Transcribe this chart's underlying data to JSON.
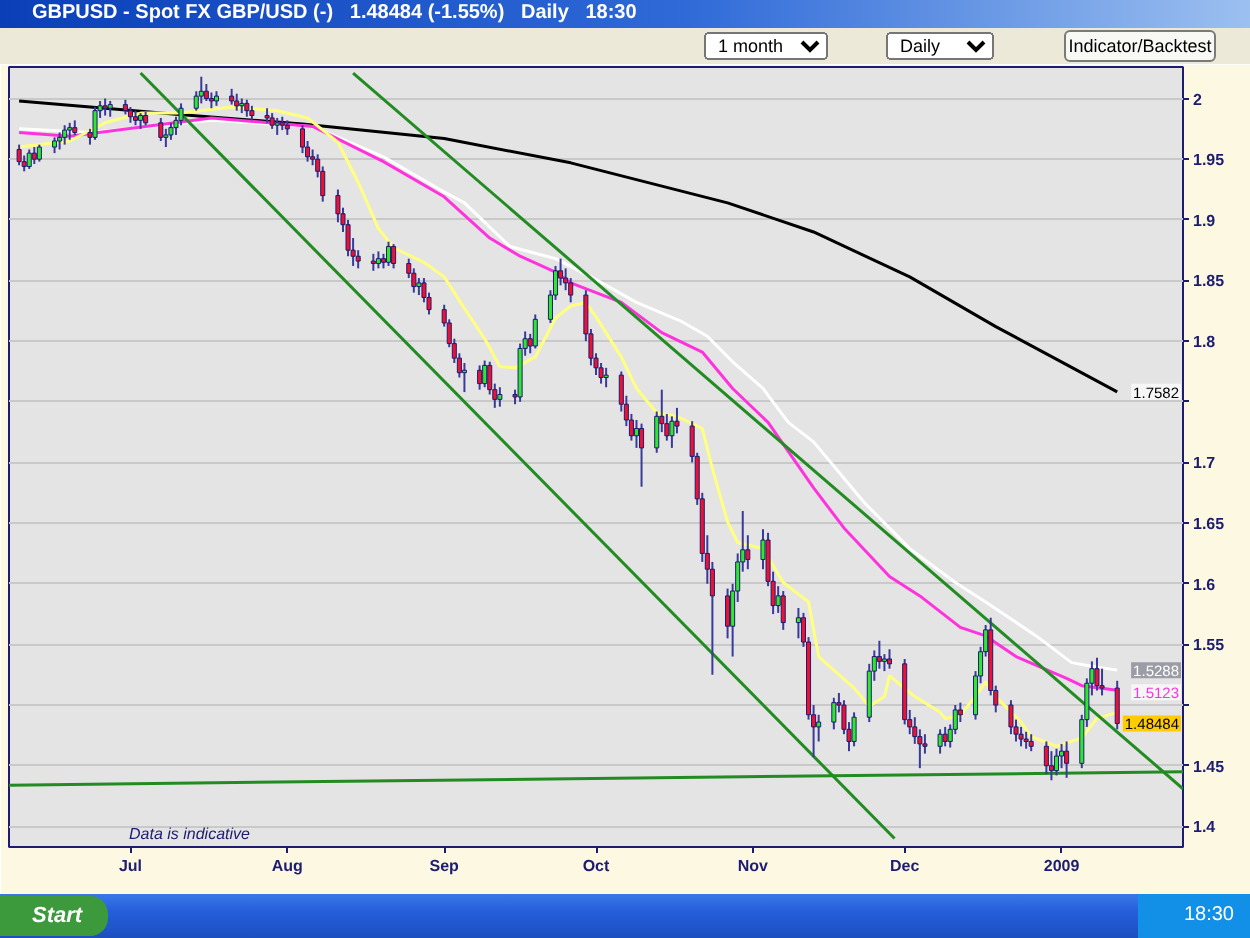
{
  "chart_data": {
    "type": "candlestick",
    "title": "GBPUSD - Spot FX GBP/USD (-)   1.48484 (-1.55%)   Daily   18:30",
    "annotations": [
      "Data is indicative",
      "1 month",
      "Daily",
      "Indicator/Backtest",
      "Start",
      "18:30"
    ],
    "xlim": [
      "2008-06-07",
      "2009-01-25"
    ],
    "ylim": [
      1.383,
      2.026
    ],
    "xticks": [
      {
        "value": "2008-07-01",
        "label": "Jul"
      },
      {
        "value": "2008-08-01",
        "label": "Aug"
      },
      {
        "value": "2008-09-01",
        "label": "Sep"
      },
      {
        "value": "2008-10-01",
        "label": "Oct"
      },
      {
        "value": "2008-11-01",
        "label": "Nov"
      },
      {
        "value": "2008-12-01",
        "label": "Dec"
      },
      {
        "value": "2009-01-01",
        "label": "2009"
      }
    ],
    "yticks": [
      2,
      1.95,
      1.9,
      1.85,
      1.8,
      {
        "value": 1.75,
        "label": null
      },
      1.7,
      1.65,
      1.6,
      1.55,
      {
        "value": 1.5,
        "label": null
      },
      1.45,
      1.4
    ],
    "grid": "y",
    "x": [
      "2008-06-09",
      "2008-06-10",
      "2008-06-11",
      "2008-06-12",
      "2008-06-13",
      "2008-06-16",
      "2008-06-17",
      "2008-06-18",
      "2008-06-19",
      "2008-06-20",
      "2008-06-23",
      "2008-06-24",
      "2008-06-25",
      "2008-06-26",
      "2008-06-27",
      "2008-06-30",
      "2008-07-01",
      "2008-07-02",
      "2008-07-03",
      "2008-07-04",
      "2008-07-07",
      "2008-07-08",
      "2008-07-09",
      "2008-07-10",
      "2008-07-11",
      "2008-07-14",
      "2008-07-15",
      "2008-07-16",
      "2008-07-17",
      "2008-07-18",
      "2008-07-21",
      "2008-07-22",
      "2008-07-23",
      "2008-07-24",
      "2008-07-25",
      "2008-07-28",
      "2008-07-29",
      "2008-07-30",
      "2008-07-31",
      "2008-08-01",
      "2008-08-04",
      "2008-08-05",
      "2008-08-06",
      "2008-08-07",
      "2008-08-08",
      "2008-08-11",
      "2008-08-12",
      "2008-08-13",
      "2008-08-14",
      "2008-08-15",
      "2008-08-18",
      "2008-08-19",
      "2008-08-20",
      "2008-08-21",
      "2008-08-22",
      "2008-08-25",
      "2008-08-26",
      "2008-08-27",
      "2008-08-28",
      "2008-08-29",
      "2008-09-01",
      "2008-09-02",
      "2008-09-03",
      "2008-09-04",
      "2008-09-05",
      "2008-09-08",
      "2008-09-09",
      "2008-09-10",
      "2008-09-11",
      "2008-09-12",
      "2008-09-15",
      "2008-09-16",
      "2008-09-17",
      "2008-09-18",
      "2008-09-19",
      "2008-09-22",
      "2008-09-23",
      "2008-09-24",
      "2008-09-25",
      "2008-09-26",
      "2008-09-29",
      "2008-09-30",
      "2008-10-01",
      "2008-10-02",
      "2008-10-03",
      "2008-10-06",
      "2008-10-07",
      "2008-10-08",
      "2008-10-09",
      "2008-10-10",
      "2008-10-13",
      "2008-10-14",
      "2008-10-15",
      "2008-10-16",
      "2008-10-17",
      "2008-10-20",
      "2008-10-21",
      "2008-10-22",
      "2008-10-23",
      "2008-10-24",
      "2008-10-27",
      "2008-10-28",
      "2008-10-29",
      "2008-10-30",
      "2008-10-31",
      "2008-11-03",
      "2008-11-04",
      "2008-11-05",
      "2008-11-06",
      "2008-11-07",
      "2008-11-10",
      "2008-11-11",
      "2008-11-12",
      "2008-11-13",
      "2008-11-14",
      "2008-11-17",
      "2008-11-18",
      "2008-11-19",
      "2008-11-20",
      "2008-11-21",
      "2008-11-24",
      "2008-11-25",
      "2008-11-26",
      "2008-11-27",
      "2008-11-28",
      "2008-12-01",
      "2008-12-02",
      "2008-12-03",
      "2008-12-04",
      "2008-12-05",
      "2008-12-08",
      "2008-12-09",
      "2008-12-10",
      "2008-12-11",
      "2008-12-12",
      "2008-12-15",
      "2008-12-16",
      "2008-12-17",
      "2008-12-18",
      "2008-12-19",
      "2008-12-22",
      "2008-12-23",
      "2008-12-24",
      "2008-12-25",
      "2008-12-26",
      "2008-12-29",
      "2008-12-30",
      "2008-12-31",
      "2009-01-01",
      "2009-01-02",
      "2009-01-05",
      "2009-01-06",
      "2009-01-07",
      "2009-01-08",
      "2009-01-09",
      "2009-01-12"
    ],
    "ohlc": [
      [
        1.958,
        1.962,
        1.945,
        1.948
      ],
      [
        1.948,
        1.953,
        1.94,
        1.944
      ],
      [
        1.944,
        1.958,
        1.942,
        1.955
      ],
      [
        1.955,
        1.96,
        1.946,
        1.95
      ],
      [
        1.95,
        1.962,
        1.948,
        1.96
      ],
      [
        1.96,
        1.968,
        1.955,
        1.965
      ],
      [
        1.965,
        1.972,
        1.958,
        1.968
      ],
      [
        1.968,
        1.978,
        1.962,
        1.974
      ],
      [
        1.974,
        1.98,
        1.966,
        1.976
      ],
      [
        1.976,
        1.982,
        1.97,
        1.972
      ],
      [
        1.972,
        1.975,
        1.962,
        1.968
      ],
      [
        1.968,
        1.993,
        1.966,
        1.99
      ],
      [
        1.99,
        1.998,
        1.984,
        1.994
      ],
      [
        1.994,
        2.0,
        1.986,
        1.992
      ],
      [
        1.992,
        1.998,
        1.985,
        1.995
      ],
      [
        1.995,
        1.999,
        1.987,
        1.99
      ],
      [
        1.99,
        1.993,
        1.98,
        1.985
      ],
      [
        1.985,
        1.99,
        1.978,
        1.982
      ],
      [
        1.982,
        1.988,
        1.975,
        1.986
      ],
      [
        1.986,
        1.989,
        1.978,
        1.98
      ],
      [
        1.98,
        1.984,
        1.965,
        1.968
      ],
      [
        1.968,
        1.975,
        1.96,
        1.97
      ],
      [
        1.97,
        1.98,
        1.966,
        1.976
      ],
      [
        1.976,
        1.985,
        1.97,
        1.982
      ],
      [
        1.982,
        1.996,
        1.978,
        1.992
      ],
      [
        1.992,
        2.006,
        1.99,
        2.002
      ],
      [
        2.002,
        2.018,
        1.996,
        2.006
      ],
      [
        2.006,
        2.012,
        1.998,
        2.0
      ],
      [
        2.0,
        2.005,
        1.992,
        1.998
      ],
      [
        1.998,
        2.006,
        1.994,
        2.002
      ],
      [
        2.002,
        2.008,
        1.995,
        1.998
      ],
      [
        1.998,
        2.004,
        1.99,
        1.994
      ],
      [
        1.994,
        2.0,
        1.988,
        1.996
      ],
      [
        1.996,
        1.999,
        1.985,
        1.99
      ],
      [
        1.99,
        1.994,
        1.982,
        1.986
      ],
      [
        1.986,
        1.992,
        1.98,
        1.984
      ],
      [
        1.984,
        1.988,
        1.975,
        1.978
      ],
      [
        1.978,
        1.984,
        1.97,
        1.98
      ],
      [
        1.98,
        1.985,
        1.974,
        1.978
      ],
      [
        1.978,
        1.982,
        1.97,
        1.975
      ],
      [
        1.975,
        1.978,
        1.955,
        1.96
      ],
      [
        1.96,
        1.965,
        1.948,
        1.952
      ],
      [
        1.952,
        1.958,
        1.945,
        1.95
      ],
      [
        1.95,
        1.954,
        1.935,
        1.94
      ],
      [
        1.94,
        1.944,
        1.915,
        1.92
      ],
      [
        1.92,
        1.925,
        1.898,
        1.905
      ],
      [
        1.905,
        1.91,
        1.89,
        1.896
      ],
      [
        1.896,
        1.9,
        1.87,
        1.875
      ],
      [
        1.875,
        1.885,
        1.862,
        1.87
      ],
      [
        1.87,
        1.875,
        1.86,
        1.866
      ],
      [
        1.866,
        1.872,
        1.858,
        1.864
      ],
      [
        1.864,
        1.874,
        1.86,
        1.868
      ],
      [
        1.868,
        1.872,
        1.86,
        1.865
      ],
      [
        1.865,
        1.882,
        1.862,
        1.878
      ],
      [
        1.878,
        1.88,
        1.86,
        1.864
      ],
      [
        1.864,
        1.868,
        1.852,
        1.856
      ],
      [
        1.856,
        1.86,
        1.84,
        1.845
      ],
      [
        1.845,
        1.852,
        1.838,
        1.848
      ],
      [
        1.848,
        1.852,
        1.832,
        1.836
      ],
      [
        1.836,
        1.84,
        1.822,
        1.826
      ],
      [
        1.826,
        1.83,
        1.812,
        1.815
      ],
      [
        1.815,
        1.818,
        1.795,
        1.798
      ],
      [
        1.798,
        1.802,
        1.782,
        1.786
      ],
      [
        1.786,
        1.79,
        1.77,
        1.774
      ],
      [
        1.774,
        1.782,
        1.758,
        1.776
      ],
      [
        1.776,
        1.78,
        1.76,
        1.765
      ],
      [
        1.765,
        1.784,
        1.762,
        1.78
      ],
      [
        1.78,
        1.783,
        1.756,
        1.76
      ],
      [
        1.76,
        1.765,
        1.745,
        1.752
      ],
      [
        1.752,
        1.762,
        1.746,
        1.756
      ],
      [
        1.756,
        1.76,
        1.748,
        1.754
      ],
      [
        1.754,
        1.798,
        1.75,
        1.794
      ],
      [
        1.794,
        1.808,
        1.788,
        1.802
      ],
      [
        1.802,
        1.806,
        1.79,
        1.796
      ],
      [
        1.796,
        1.822,
        1.794,
        1.818
      ],
      [
        1.818,
        1.842,
        1.815,
        1.838
      ],
      [
        1.838,
        1.862,
        1.834,
        1.858
      ],
      [
        1.858,
        1.868,
        1.846,
        1.852
      ],
      [
        1.852,
        1.86,
        1.842,
        1.848
      ],
      [
        1.848,
        1.852,
        1.832,
        1.838
      ],
      [
        1.838,
        1.842,
        1.8,
        1.806
      ],
      [
        1.806,
        1.81,
        1.78,
        1.786
      ],
      [
        1.786,
        1.79,
        1.772,
        1.778
      ],
      [
        1.778,
        1.782,
        1.765,
        1.77
      ],
      [
        1.77,
        1.778,
        1.762,
        1.772
      ],
      [
        1.772,
        1.775,
        1.742,
        1.748
      ],
      [
        1.748,
        1.755,
        1.73,
        1.735
      ],
      [
        1.735,
        1.74,
        1.718,
        1.722
      ],
      [
        1.722,
        1.735,
        1.712,
        1.728
      ],
      [
        1.728,
        1.732,
        1.68,
        1.712
      ],
      [
        1.712,
        1.742,
        1.708,
        1.738
      ],
      [
        1.738,
        1.76,
        1.725,
        1.732
      ],
      [
        1.732,
        1.74,
        1.718,
        1.722
      ],
      [
        1.722,
        1.738,
        1.712,
        1.734
      ],
      [
        1.734,
        1.745,
        1.724,
        1.73
      ],
      [
        1.73,
        1.734,
        1.7,
        1.705
      ],
      [
        1.705,
        1.708,
        1.665,
        1.67
      ],
      [
        1.67,
        1.675,
        1.618,
        1.625
      ],
      [
        1.625,
        1.64,
        1.6,
        1.612
      ],
      [
        1.612,
        1.618,
        1.525,
        1.59
      ],
      [
        1.59,
        1.596,
        1.555,
        1.565
      ],
      [
        1.565,
        1.6,
        1.54,
        1.594
      ],
      [
        1.594,
        1.625,
        1.585,
        1.618
      ],
      [
        1.618,
        1.66,
        1.61,
        1.628
      ],
      [
        1.628,
        1.64,
        1.612,
        1.62
      ],
      [
        1.62,
        1.645,
        1.612,
        1.636
      ],
      [
        1.636,
        1.642,
        1.598,
        1.602
      ],
      [
        1.602,
        1.61,
        1.575,
        1.582
      ],
      [
        1.582,
        1.598,
        1.576,
        1.59
      ],
      [
        1.59,
        1.594,
        1.562,
        1.568
      ],
      [
        1.568,
        1.58,
        1.555,
        1.572
      ],
      [
        1.572,
        1.576,
        1.548,
        1.552
      ],
      [
        1.552,
        1.556,
        1.488,
        1.492
      ],
      [
        1.492,
        1.5,
        1.457,
        1.482
      ],
      [
        1.482,
        1.492,
        1.47,
        1.486
      ],
      [
        1.486,
        1.506,
        1.48,
        1.502
      ],
      [
        1.502,
        1.51,
        1.494,
        1.5
      ],
      [
        1.5,
        1.504,
        1.476,
        1.48
      ],
      [
        1.48,
        1.486,
        1.462,
        1.47
      ],
      [
        1.47,
        1.494,
        1.466,
        1.49
      ],
      [
        1.49,
        1.534,
        1.486,
        1.528
      ],
      [
        1.528,
        1.545,
        1.52,
        1.54
      ],
      [
        1.54,
        1.553,
        1.53,
        1.536
      ],
      [
        1.536,
        1.542,
        1.528,
        1.538
      ],
      [
        1.538,
        1.546,
        1.53,
        1.534
      ],
      [
        1.534,
        1.538,
        1.484,
        1.488
      ],
      [
        1.488,
        1.496,
        1.476,
        1.482
      ],
      [
        1.482,
        1.49,
        1.468,
        1.474
      ],
      [
        1.474,
        1.48,
        1.448,
        1.468
      ],
      [
        1.468,
        1.476,
        1.46,
        1.466
      ],
      [
        1.466,
        1.48,
        1.46,
        1.476
      ],
      [
        1.476,
        1.482,
        1.466,
        1.47
      ],
      [
        1.47,
        1.484,
        1.465,
        1.48
      ],
      [
        1.48,
        1.5,
        1.476,
        1.496
      ],
      [
        1.496,
        1.502,
        1.486,
        1.492
      ],
      [
        1.492,
        1.528,
        1.488,
        1.524
      ],
      [
        1.524,
        1.548,
        1.518,
        1.544
      ],
      [
        1.544,
        1.566,
        1.54,
        1.562
      ],
      [
        1.562,
        1.572,
        1.508,
        1.512
      ],
      [
        1.512,
        1.516,
        1.494,
        1.5
      ],
      [
        1.5,
        1.504,
        1.476,
        1.482
      ],
      [
        1.482,
        1.488,
        1.47,
        1.476
      ],
      [
        1.476,
        1.482,
        1.466,
        1.472
      ],
      [
        1.472,
        1.478,
        1.464,
        1.47
      ],
      [
        1.47,
        1.476,
        1.462,
        1.466
      ],
      [
        1.466,
        1.47,
        1.443,
        1.45
      ],
      [
        1.45,
        1.462,
        1.438,
        1.446
      ],
      [
        1.446,
        1.464,
        1.442,
        1.458
      ],
      [
        1.458,
        1.468,
        1.448,
        1.462
      ],
      [
        1.462,
        1.47,
        1.44,
        1.452
      ],
      [
        1.452,
        1.492,
        1.448,
        1.488
      ],
      [
        1.488,
        1.522,
        1.482,
        1.518
      ],
      [
        1.518,
        1.536,
        1.508,
        1.53
      ],
      [
        1.53,
        1.539,
        1.512,
        1.516
      ],
      [
        1.516,
        1.53,
        1.508,
        1.514
      ],
      [
        1.514,
        1.52,
        1.48,
        1.48484
      ]
    ],
    "colors": [
      "#ee1133",
      "#ee1133",
      "#2ee82e",
      "#ee1133",
      "#2ee82e",
      "#2ee82e",
      "#2ee82e",
      "#2ee82e",
      "#2ee82e",
      "#ee1133",
      "#ee1133",
      "#2ee82e",
      "#2ee82e",
      "#ee1133",
      "#2ee82e",
      "#ee1133",
      "#ee1133",
      "#ee1133",
      "#2ee82e",
      "#ee1133",
      "#ee1133",
      "#2ee82e",
      "#2ee82e",
      "#2ee82e",
      "#2ee82e",
      "#2ee82e",
      "#2ee82e",
      "#ee1133",
      "#ee1133",
      "#2ee82e",
      "#ee1133",
      "#ee1133",
      "#2ee82e",
      "#ee1133",
      "#ee1133",
      "#ee1133",
      "#ee1133",
      "#2ee82e",
      "#ee1133",
      "#ee1133",
      "#ee1133",
      "#ee1133",
      "#ee1133",
      "#ee1133",
      "#ee1133",
      "#ee1133",
      "#ee1133",
      "#ee1133",
      "#ee1133",
      "#ee1133",
      "#ee1133",
      "#2ee82e",
      "#ee1133",
      "#2ee82e",
      "#ee1133",
      "#ee1133",
      "#ee1133",
      "#2ee82e",
      "#ee1133",
      "#ee1133",
      "#ee1133",
      "#ee1133",
      "#ee1133",
      "#ee1133",
      "#2ee82e",
      "#ee1133",
      "#2ee82e",
      "#ee1133",
      "#ee1133",
      "#2ee82e",
      "#ee1133",
      "#2ee82e",
      "#2ee82e",
      "#ee1133",
      "#2ee82e",
      "#2ee82e",
      "#2ee82e",
      "#ee1133",
      "#ee1133",
      "#ee1133",
      "#ee1133",
      "#ee1133",
      "#ee1133",
      "#ee1133",
      "#2ee82e",
      "#ee1133",
      "#ee1133",
      "#ee1133",
      "#2ee82e",
      "#ee1133",
      "#2ee82e",
      "#ee1133",
      "#ee1133",
      "#2ee82e",
      "#ee1133",
      "#ee1133",
      "#ee1133",
      "#ee1133",
      "#ee1133",
      "#ee1133",
      "#ee1133",
      "#2ee82e",
      "#2ee82e",
      "#2ee82e",
      "#ee1133",
      "#2ee82e",
      "#ee1133",
      "#ee1133",
      "#2ee82e",
      "#ee1133",
      "#2ee82e",
      "#ee1133",
      "#ee1133",
      "#ee1133",
      "#2ee82e",
      "#2ee82e",
      "#ee1133",
      "#ee1133",
      "#ee1133",
      "#2ee82e",
      "#2ee82e",
      "#2ee82e",
      "#ee1133",
      "#2ee82e",
      "#ee1133",
      "#ee1133",
      "#ee1133",
      "#ee1133",
      "#ee1133",
      "#ee1133",
      "#2ee82e",
      "#ee1133",
      "#2ee82e",
      "#2ee82e",
      "#ee1133",
      "#2ee82e",
      "#2ee82e",
      "#2ee82e",
      "#ee1133",
      "#ee1133",
      "#ee1133",
      "#ee1133",
      "#ee1133",
      "#ee1133",
      "#ee1133",
      "#ee1133",
      "#ee1133",
      "#2ee82e",
      "#2ee82e",
      "#ee1133",
      "#2ee82e",
      "#2ee82e",
      "#2ee82e",
      "#ee1133",
      "#ee1133",
      "#ee1133"
    ],
    "value_labels": [
      null,
      null,
      null,
      null,
      null,
      null,
      null,
      null,
      null,
      null,
      null,
      null,
      null,
      null,
      null,
      null,
      null,
      null,
      null,
      null,
      null,
      null,
      null,
      null,
      null,
      null,
      null,
      null,
      null,
      null,
      null,
      null,
      null,
      null,
      null,
      null,
      null,
      null,
      null,
      null,
      null,
      null,
      null,
      null,
      null,
      null,
      null,
      null,
      null,
      null,
      null,
      null,
      null,
      null,
      null,
      null,
      null,
      null,
      null,
      null,
      null,
      null,
      null,
      null,
      null,
      null,
      null,
      null,
      null,
      null,
      null,
      null,
      null,
      null,
      null,
      null,
      null,
      null,
      null,
      null,
      null,
      null,
      null,
      null,
      null,
      null,
      null,
      null,
      null,
      null,
      null,
      null,
      null,
      null,
      null,
      null,
      null,
      null,
      null,
      null,
      null,
      null,
      null,
      null,
      null,
      null,
      null,
      null,
      null,
      null,
      null,
      null,
      null,
      null,
      null,
      null,
      null,
      null,
      null,
      null,
      null,
      null,
      null,
      null,
      null,
      null,
      null,
      null,
      null,
      null,
      null,
      null,
      null,
      null,
      null,
      null,
      null,
      null,
      null,
      null,
      null,
      null,
      null,
      null,
      null,
      null,
      null,
      null,
      null,
      null,
      null,
      null,
      null,
      null,
      null,
      "1.48484"
    ],
    "series": [
      {
        "type": "line",
        "color": "#000000",
        "x": [
          "2008-06-09",
          "2008-07-10",
          "2008-08-04",
          "2008-09-01",
          "2008-09-26",
          "2008-10-27",
          "2008-11-13",
          "2008-12-02",
          "2008-12-19",
          "2009-01-12"
        ],
        "values": [
          1.998,
          1.987,
          1.979,
          1.967,
          1.947,
          1.914,
          1.89,
          1.853,
          1.812,
          1.7582
        ],
        "value_labels": [
          null,
          null,
          null,
          null,
          null,
          null,
          null,
          null,
          null,
          "1.7582"
        ]
      },
      {
        "type": "line",
        "color": "#ffffff",
        "x": [
          "2008-06-09",
          "2008-06-23",
          "2008-07-17",
          "2008-08-06",
          "2008-08-20",
          "2008-09-01",
          "2008-09-05",
          "2008-09-14",
          "2008-09-23",
          "2008-09-30",
          "2008-10-09",
          "2008-10-18",
          "2008-10-23",
          "2008-10-28",
          "2008-11-03",
          "2008-11-08",
          "2008-11-13",
          "2008-11-23",
          "2008-12-02",
          "2008-12-11",
          "2008-12-17",
          "2008-12-27",
          "2009-01-03",
          "2009-01-07",
          "2009-01-12"
        ],
        "values": [
          1.975,
          1.972,
          1.982,
          1.977,
          1.952,
          1.923,
          1.914,
          1.878,
          1.868,
          1.853,
          1.832,
          1.816,
          1.804,
          1.783,
          1.761,
          1.733,
          1.717,
          1.667,
          1.629,
          1.601,
          1.585,
          1.557,
          1.535,
          1.532,
          1.5288
        ],
        "value_labels": [
          null,
          null,
          null,
          null,
          null,
          null,
          null,
          null,
          null,
          null,
          null,
          null,
          null,
          null,
          null,
          null,
          null,
          null,
          null,
          null,
          null,
          null,
          null,
          null,
          "1.5288"
        ]
      },
      {
        "type": "line",
        "color": "#ff33dd",
        "x": [
          "2008-06-09",
          "2008-06-19",
          "2008-07-17",
          "2008-08-06",
          "2008-08-20",
          "2008-09-01",
          "2008-09-10",
          "2008-09-16",
          "2008-09-23",
          "2008-09-26",
          "2008-10-06",
          "2008-10-14",
          "2008-10-22",
          "2008-10-28",
          "2008-11-04",
          "2008-11-13",
          "2008-11-19",
          "2008-11-28",
          "2008-12-04",
          "2008-12-12",
          "2008-12-17",
          "2008-12-23",
          "2009-01-02",
          "2009-01-05",
          "2009-01-12"
        ],
        "values": [
          1.972,
          1.969,
          1.984,
          1.977,
          1.948,
          1.919,
          1.885,
          1.87,
          1.857,
          1.848,
          1.832,
          1.807,
          1.791,
          1.761,
          1.733,
          1.679,
          1.646,
          1.606,
          1.59,
          1.564,
          1.557,
          1.54,
          1.522,
          1.516,
          1.5123
        ],
        "value_labels": [
          null,
          null,
          null,
          null,
          null,
          null,
          null,
          null,
          null,
          null,
          null,
          null,
          null,
          null,
          null,
          null,
          null,
          null,
          null,
          null,
          null,
          null,
          null,
          null,
          "1.5123"
        ]
      },
      {
        "type": "line",
        "color": "#ffff80",
        "x": [
          "2008-06-09",
          "2008-06-19",
          "2008-06-26",
          "2008-07-03",
          "2008-07-11",
          "2008-07-21",
          "2008-07-30",
          "2008-08-05",
          "2008-08-11",
          "2008-08-15",
          "2008-08-19",
          "2008-08-22",
          "2008-08-28",
          "2008-09-01",
          "2008-09-05",
          "2008-09-09",
          "2008-09-12",
          "2008-09-15",
          "2008-09-19",
          "2008-09-23",
          "2008-09-26",
          "2008-09-29",
          "2008-10-01",
          "2008-10-06",
          "2008-10-09",
          "2008-10-13",
          "2008-10-17",
          "2008-10-22",
          "2008-10-24",
          "2008-10-27",
          "2008-10-29",
          "2008-11-03",
          "2008-11-07",
          "2008-11-12",
          "2008-11-14",
          "2008-11-21",
          "2008-11-24",
          "2008-11-27",
          "2008-11-28",
          "2008-12-03",
          "2008-12-08",
          "2008-12-09",
          "2008-12-12",
          "2008-12-17",
          "2008-12-19",
          "2008-12-24",
          "2008-12-26",
          "2008-12-31",
          "2009-01-05",
          "2009-01-08",
          "2009-01-12"
        ],
        "values": [
          1.96,
          1.965,
          1.98,
          1.988,
          1.988,
          1.993,
          1.99,
          1.984,
          1.964,
          1.931,
          1.893,
          1.877,
          1.865,
          1.853,
          1.827,
          1.802,
          1.779,
          1.778,
          1.787,
          1.819,
          1.829,
          1.832,
          1.82,
          1.787,
          1.761,
          1.741,
          1.738,
          1.728,
          1.695,
          1.651,
          1.634,
          1.629,
          1.601,
          1.585,
          1.54,
          1.514,
          1.499,
          1.507,
          1.524,
          1.507,
          1.494,
          1.489,
          1.491,
          1.519,
          1.507,
          1.486,
          1.474,
          1.466,
          1.473,
          1.489,
          1.494
        ]
      },
      {
        "type": "line",
        "color": "#228b22",
        "x": [
          "2008-07-03",
          "2008-11-29"
        ],
        "values": [
          2.021,
          1.39
        ]
      },
      {
        "type": "line",
        "color": "#228b22",
        "x": [
          "2008-08-14",
          "2009-01-25"
        ],
        "values": [
          2.021,
          1.431
        ]
      },
      {
        "type": "line",
        "color": "#228b22",
        "x": [
          "2008-06-07",
          "2009-01-25"
        ],
        "values": [
          1.434,
          1.445
        ]
      }
    ]
  }
}
